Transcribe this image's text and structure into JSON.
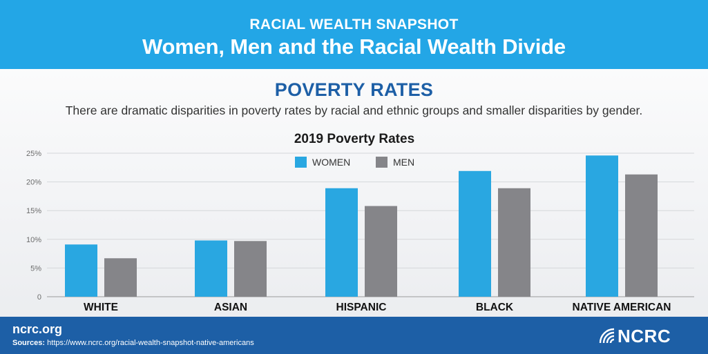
{
  "header": {
    "kicker": "RACIAL WEALTH SNAPSHOT",
    "title": "Women, Men and the Racial Wealth Divide"
  },
  "section": {
    "title": "POVERTY RATES",
    "subtitle": "There are dramatic disparities in poverty rates by racial and ethnic groups and smaller disparities by gender."
  },
  "chart_data": {
    "type": "bar",
    "title": "2019 Poverty Rates",
    "xlabel": "",
    "ylabel": "",
    "categories": [
      "WHITE",
      "ASIAN",
      "HISPANIC",
      "BLACK",
      "NATIVE AMERICAN"
    ],
    "series": [
      {
        "name": "WOMEN",
        "color": "#29a7e1",
        "values": [
          9.1,
          9.8,
          18.9,
          21.9,
          24.6
        ]
      },
      {
        "name": "MEN",
        "color": "#858589",
        "values": [
          6.7,
          9.7,
          15.8,
          18.9,
          21.3
        ]
      }
    ],
    "ylim": [
      0,
      25
    ],
    "yticks": [
      0,
      5,
      10,
      15,
      20,
      25
    ],
    "ytick_labels": [
      "0",
      "5%",
      "10%",
      "15%",
      "20%",
      "25%"
    ],
    "grid": true,
    "legend": "top-center"
  },
  "footer": {
    "site": "ncrc.org",
    "sources_label": "Sources:",
    "sources_url": "https://www.ncrc.org/racial-wealth-snapshot-native-americans",
    "logo_text": "NCRC"
  }
}
